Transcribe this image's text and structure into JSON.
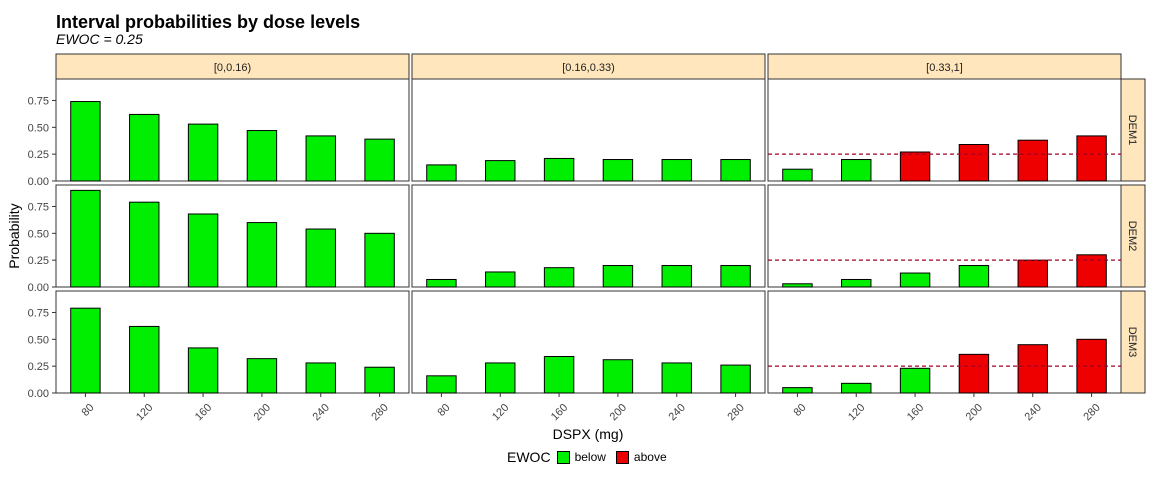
{
  "title": "Interval probabilities by dose levels",
  "subtitle": "EWOC = 0.25",
  "chart_data": {
    "type": "bar",
    "title": "Interval probabilities by dose levels",
    "subtitle": "EWOC = 0.25",
    "xlabel": "DSPX (mg)",
    "ylabel": "Probability",
    "ylim": [
      0,
      0.95
    ],
    "yticks": [
      "0.00",
      "0.25",
      "0.50",
      "0.75"
    ],
    "categories": [
      "80",
      "120",
      "160",
      "200",
      "240",
      "280"
    ],
    "facet_cols": [
      "[0,0.16)",
      "[0.16,0.33)",
      "[0.33,1]"
    ],
    "facet_rows": [
      "DEM1",
      "DEM2",
      "DEM3"
    ],
    "ewoc_threshold": 0.25,
    "threshold_panel_col": 2,
    "legend": {
      "title": "EWOC",
      "position": "bottom",
      "items": [
        {
          "label": "below",
          "color": "#00ee00"
        },
        {
          "label": "above",
          "color": "#ee0000"
        }
      ]
    },
    "panels": [
      [
        [
          0.74,
          0.62,
          0.53,
          0.47,
          0.42,
          0.39
        ],
        [
          0.15,
          0.19,
          0.21,
          0.2,
          0.2,
          0.2
        ],
        [
          0.11,
          0.2,
          0.27,
          0.34,
          0.38,
          0.42
        ]
      ],
      [
        [
          0.9,
          0.79,
          0.68,
          0.6,
          0.54,
          0.5
        ],
        [
          0.07,
          0.14,
          0.18,
          0.2,
          0.2,
          0.2
        ],
        [
          0.03,
          0.07,
          0.13,
          0.2,
          0.25,
          0.3
        ]
      ],
      [
        [
          0.79,
          0.62,
          0.42,
          0.32,
          0.28,
          0.24
        ],
        [
          0.16,
          0.28,
          0.34,
          0.31,
          0.28,
          0.26
        ],
        [
          0.05,
          0.09,
          0.23,
          0.36,
          0.45,
          0.5
        ]
      ]
    ]
  }
}
